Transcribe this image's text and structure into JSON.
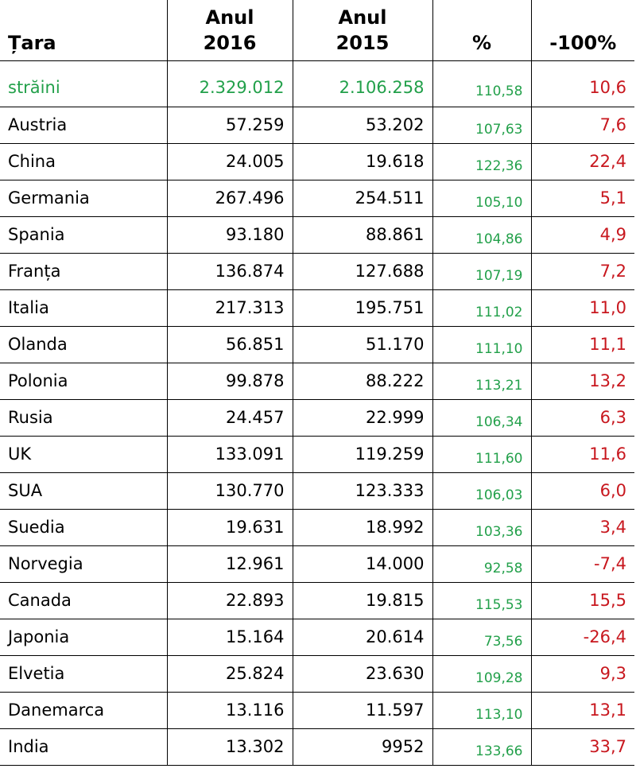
{
  "table": {
    "headers": {
      "country": "Țara",
      "year2016_line1": "Anul",
      "year2016_line2": "2016",
      "year2015_line1": "Anul",
      "year2015_line2": "2015",
      "pct": "%",
      "diff": "-100%"
    },
    "rows": [
      {
        "country": "străini",
        "y2016": "2.329.012",
        "y2015": "2.106.258",
        "pct": "110,58",
        "diff": "10,6"
      },
      {
        "country": "Austria",
        "y2016": "57.259",
        "y2015": "53.202",
        "pct": "107,63",
        "diff": "7,6"
      },
      {
        "country": "China",
        "y2016": "24.005",
        "y2015": "19.618",
        "pct": "122,36",
        "diff": "22,4"
      },
      {
        "country": "Germania",
        "y2016": "267.496",
        "y2015": "254.511",
        "pct": "105,10",
        "diff": "5,1"
      },
      {
        "country": "Spania",
        "y2016": "93.180",
        "y2015": "88.861",
        "pct": "104,86",
        "diff": "4,9"
      },
      {
        "country": "Franța",
        "y2016": "136.874",
        "y2015": "127.688",
        "pct": "107,19",
        "diff": "7,2"
      },
      {
        "country": "Italia",
        "y2016": "217.313",
        "y2015": "195.751",
        "pct": "111,02",
        "diff": "11,0"
      },
      {
        "country": "Olanda",
        "y2016": "56.851",
        "y2015": "51.170",
        "pct": "111,10",
        "diff": "11,1"
      },
      {
        "country": "Polonia",
        "y2016": "99.878",
        "y2015": "88.222",
        "pct": "113,21",
        "diff": "13,2"
      },
      {
        "country": "Rusia",
        "y2016": "24.457",
        "y2015": "22.999",
        "pct": "106,34",
        "diff": "6,3"
      },
      {
        "country": "UK",
        "y2016": "133.091",
        "y2015": "119.259",
        "pct": "111,60",
        "diff": "11,6"
      },
      {
        "country": "SUA",
        "y2016": "130.770",
        "y2015": "123.333",
        "pct": "106,03",
        "diff": "6,0"
      },
      {
        "country": "Suedia",
        "y2016": "19.631",
        "y2015": "18.992",
        "pct": "103,36",
        "diff": "3,4"
      },
      {
        "country": "Norvegia",
        "y2016": "12.961",
        "y2015": "14.000",
        "pct": "92,58",
        "diff": "-7,4"
      },
      {
        "country": "Canada",
        "y2016": "22.893",
        "y2015": "19.815",
        "pct": "115,53",
        "diff": "15,5"
      },
      {
        "country": "Japonia",
        "y2016": "15.164",
        "y2015": "20.614",
        "pct": "73,56",
        "diff": "-26,4"
      },
      {
        "country": "Elvetia",
        "y2016": "25.824",
        "y2015": "23.630",
        "pct": "109,28",
        "diff": "9,3"
      },
      {
        "country": "Danemarca",
        "y2016": "13.116",
        "y2015": "11.597",
        "pct": "113,10",
        "diff": "13,1"
      },
      {
        "country": "India",
        "y2016": "13.302",
        "y2015": "9952",
        "pct": "133,66",
        "diff": "33,7"
      }
    ]
  }
}
